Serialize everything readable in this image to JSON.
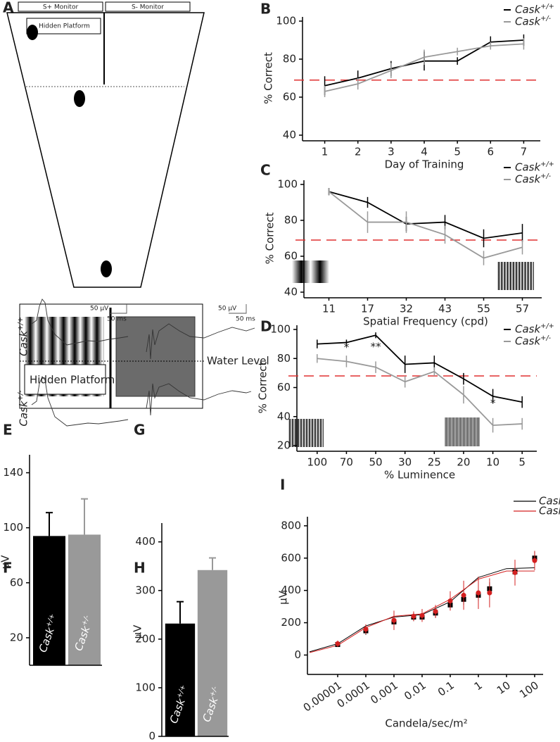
{
  "diagram": {
    "panel": "A",
    "s_plus_monitor": "S+ Monitor",
    "s_minus_monitor": "S- Monitor",
    "hidden_platform_top": "Hidden Platform",
    "hidden_platform_bottom": "Hidden Platform",
    "water_level": "Water Level"
  },
  "traces": [
    {
      "panel": "E",
      "scale_voltage": "50 µV",
      "scale_time": "50 ms",
      "labels": [
        "Cask+/+",
        "Cask+/-"
      ]
    },
    {
      "panel": "G",
      "scale_voltage": "50 µV",
      "scale_time": "50 ms"
    }
  ],
  "chart_data": [
    {
      "panel": "B",
      "type": "line",
      "x_label": "Day of Training",
      "y_label": "% Correct",
      "categories": [
        "1",
        "2",
        "3",
        "4",
        "5",
        "6",
        "7"
      ],
      "ylim": [
        40,
        100
      ],
      "yticks": [
        40,
        60,
        80,
        100
      ],
      "reference_line": {
        "value": 69,
        "color": "#e03030"
      },
      "series": [
        {
          "name": "Cask+/+",
          "color": "#000000",
          "values": [
            66,
            70,
            75,
            79,
            79,
            89,
            90
          ],
          "errors": [
            5,
            4,
            4,
            5,
            2,
            3,
            3
          ]
        },
        {
          "name": "Cask+/-",
          "color": "#999999",
          "values": [
            63,
            67,
            74,
            81,
            84,
            87,
            88
          ],
          "errors": [
            3,
            3,
            4,
            4,
            2,
            2,
            3
          ]
        }
      ]
    },
    {
      "panel": "C",
      "type": "line",
      "x_label": "Spatial Frequency (cpd)",
      "y_label": "% Correct",
      "categories": [
        "11",
        "17",
        "32",
        "43",
        "55",
        "57"
      ],
      "ylim": [
        40,
        100
      ],
      "yticks": [
        40,
        60,
        80,
        100
      ],
      "reference_line": {
        "value": 69,
        "color": "#e03030"
      },
      "series": [
        {
          "name": "Cask+/+",
          "color": "#000000",
          "values": [
            96,
            90,
            78,
            79,
            70,
            73
          ],
          "errors": [
            2,
            3,
            4,
            4,
            5,
            5
          ]
        },
        {
          "name": "Cask+/-",
          "color": "#999999",
          "values": [
            96,
            79,
            79,
            72,
            59,
            65
          ],
          "errors": [
            2,
            6,
            6,
            5,
            4,
            4
          ]
        }
      ]
    },
    {
      "panel": "D",
      "type": "line",
      "x_label": "% Luminence",
      "y_label": "% Correct",
      "categories": [
        "100",
        "70",
        "50",
        "30",
        "25",
        "20",
        "10",
        "5"
      ],
      "ylim": [
        20,
        100
      ],
      "yticks": [
        20,
        40,
        60,
        80,
        100
      ],
      "reference_line": {
        "value": 68,
        "color": "#e03030"
      },
      "annotations": [
        null,
        "*",
        "**",
        null,
        null,
        null,
        "*",
        null
      ],
      "series": [
        {
          "name": "Cask+/+",
          "color": "#000000",
          "values": [
            90,
            91,
            96,
            76,
            77,
            66,
            54,
            50
          ],
          "errors": [
            3,
            2,
            2,
            6,
            5,
            4,
            5,
            4
          ]
        },
        {
          "name": "Cask+/-",
          "color": "#999999",
          "values": [
            80,
            78,
            74,
            64,
            71,
            55,
            34,
            35
          ],
          "errors": [
            3,
            4,
            4,
            4,
            3,
            6,
            5,
            4
          ]
        }
      ]
    },
    {
      "panel": "F",
      "type": "bar",
      "y_label": "µV",
      "categories": [
        "Cask+/+",
        "Cask+/-"
      ],
      "values": [
        94,
        95
      ],
      "errors": [
        17,
        26
      ],
      "colors": [
        "#000000",
        "#999999"
      ],
      "ylim": [
        0,
        150
      ],
      "yticks": [
        20,
        60,
        100,
        140
      ]
    },
    {
      "panel": "H",
      "type": "bar",
      "y_label": "µV",
      "categories": [
        "Cask+/+",
        "Cask+/-"
      ],
      "values": [
        232,
        342
      ],
      "errors": [
        45,
        25
      ],
      "colors": [
        "#000000",
        "#999999"
      ],
      "ylim": [
        0,
        430
      ],
      "yticks": [
        0,
        100,
        200,
        300,
        400
      ]
    },
    {
      "panel": "I",
      "type": "scatter",
      "x_label": "Candela/sec/m²",
      "y_label": "µV",
      "xlog": true,
      "xlim": [
        1e-06,
        200
      ],
      "xticks": [
        1e-05,
        0.0001,
        0.001,
        0.01,
        0.1,
        1,
        10,
        100
      ],
      "ylim": [
        -120,
        830
      ],
      "yticks": [
        0,
        200,
        400,
        600,
        800
      ],
      "x": [
        1e-05,
        0.0001,
        0.001,
        0.005,
        0.01,
        0.03,
        0.1,
        0.3,
        1,
        2.5,
        20,
        100
      ],
      "series": [
        {
          "name": "Cask+/+",
          "color": "#000000",
          "marker": "square",
          "values": [
            65,
            150,
            205,
            235,
            235,
            260,
            310,
            345,
            370,
            410,
            515,
            600
          ],
          "errors": [
            15,
            25,
            30,
            25,
            25,
            30,
            30,
            35,
            35,
            40,
            40,
            40
          ]
        },
        {
          "name": "Cask+/-",
          "color": "#d42020",
          "marker": "circle",
          "values": [
            70,
            160,
            215,
            240,
            245,
            270,
            335,
            370,
            385,
            385,
            510,
            585
          ],
          "errors": [
            20,
            30,
            60,
            30,
            40,
            40,
            60,
            90,
            100,
            90,
            80,
            60
          ]
        }
      ],
      "fits": [
        {
          "color": "#000000",
          "x": [
            1e-06,
            1e-05,
            0.0001,
            0.001,
            0.01,
            0.1,
            1,
            10,
            100
          ],
          "values": [
            20,
            70,
            180,
            235,
            250,
            330,
            480,
            535,
            540
          ]
        },
        {
          "color": "#d42020",
          "x": [
            1e-06,
            1e-05,
            0.0001,
            0.001,
            0.01,
            0.1,
            1,
            10,
            100
          ],
          "values": [
            15,
            60,
            170,
            240,
            255,
            345,
            470,
            520,
            520
          ]
        }
      ]
    }
  ]
}
